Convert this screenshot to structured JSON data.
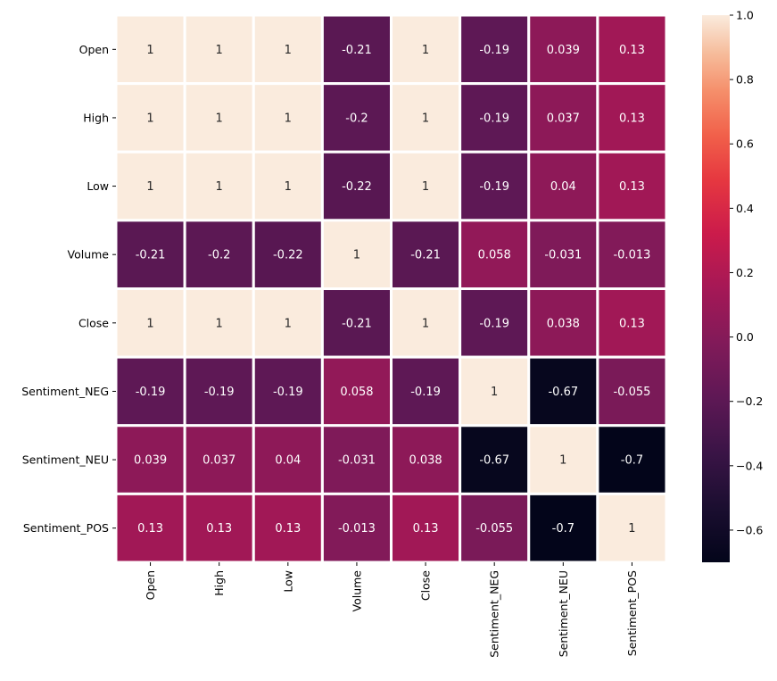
{
  "chart_data": {
    "type": "heatmap",
    "title": "",
    "xlabel": "",
    "ylabel": "",
    "rows": [
      "Open",
      "High",
      "Low",
      "Volume",
      "Close",
      "Sentiment_NEG",
      "Sentiment_NEU",
      "Sentiment_POS"
    ],
    "columns": [
      "Open",
      "High",
      "Low",
      "Volume",
      "Close",
      "Sentiment_NEG",
      "Sentiment_NEU",
      "Sentiment_POS"
    ],
    "values": [
      [
        1,
        1,
        1,
        -0.21,
        1,
        -0.19,
        0.039,
        0.13
      ],
      [
        1,
        1,
        1,
        -0.2,
        1,
        -0.19,
        0.037,
        0.13
      ],
      [
        1,
        1,
        1,
        -0.22,
        1,
        -0.19,
        0.04,
        0.13
      ],
      [
        -0.21,
        -0.2,
        -0.22,
        1,
        -0.21,
        0.058,
        -0.031,
        -0.013
      ],
      [
        1,
        1,
        1,
        -0.21,
        1,
        -0.19,
        0.038,
        0.13
      ],
      [
        -0.19,
        -0.19,
        -0.19,
        0.058,
        -0.19,
        1,
        -0.67,
        -0.055
      ],
      [
        0.039,
        0.037,
        0.04,
        -0.031,
        0.038,
        -0.67,
        1,
        -0.7
      ],
      [
        0.13,
        0.13,
        0.13,
        -0.013,
        0.13,
        -0.055,
        -0.7,
        1
      ]
    ],
    "annotations": [
      [
        "1",
        "1",
        "1",
        "-0.21",
        "1",
        "-0.19",
        "0.039",
        "0.13"
      ],
      [
        "1",
        "1",
        "1",
        "-0.2",
        "1",
        "-0.19",
        "0.037",
        "0.13"
      ],
      [
        "1",
        "1",
        "1",
        "-0.22",
        "1",
        "-0.19",
        "0.04",
        "0.13"
      ],
      [
        "-0.21",
        "-0.2",
        "-0.22",
        "1",
        "-0.21",
        "0.058",
        "-0.031",
        "-0.013"
      ],
      [
        "1",
        "1",
        "1",
        "-0.21",
        "1",
        "-0.19",
        "0.038",
        "0.13"
      ],
      [
        "-0.19",
        "-0.19",
        "-0.19",
        "0.058",
        "-0.19",
        "1",
        "-0.67",
        "-0.055"
      ],
      [
        "0.039",
        "0.037",
        "0.04",
        "-0.031",
        "0.038",
        "-0.67",
        "1",
        "-0.7"
      ],
      [
        "0.13",
        "0.13",
        "0.13",
        "-0.013",
        "0.13",
        "-0.055",
        "-0.7",
        "1"
      ]
    ],
    "colormap": "rocket",
    "colorbar": {
      "range": [
        -0.7,
        1.0
      ],
      "ticks": [
        1.0,
        0.8,
        0.6,
        0.4,
        0.2,
        0.0,
        -0.2,
        -0.4,
        -0.6
      ],
      "tick_labels": [
        "1.0",
        "0.8",
        "0.6",
        "0.4",
        "0.2",
        "0.0",
        "−0.2",
        "−0.4",
        "−0.6"
      ],
      "placement": "right"
    },
    "grid_lines": "white",
    "legend": "none"
  }
}
